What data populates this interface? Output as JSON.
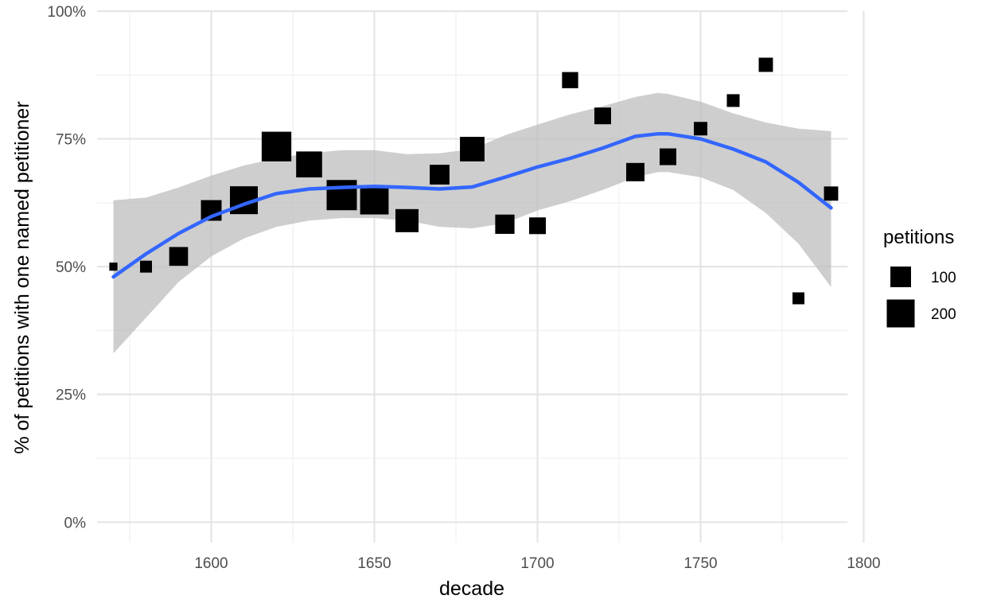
{
  "chart_data": {
    "type": "scatter",
    "xlabel": "decade",
    "ylabel": "% of petitions with one named petitioner",
    "xlim": [
      1565,
      1795
    ],
    "ylim": [
      -0.04,
      1.0
    ],
    "x_ticks": [
      1600,
      1650,
      1700,
      1750,
      1800
    ],
    "x_tick_labels": [
      "1600",
      "1650",
      "1700",
      "1750",
      "1800"
    ],
    "y_ticks": [
      0,
      0.25,
      0.5,
      0.75,
      1.0
    ],
    "y_tick_labels": [
      "0%",
      "25%",
      "50%",
      "75%",
      "100%"
    ],
    "grid": true,
    "legend": {
      "title": "petitions",
      "position": "right",
      "entries": [
        {
          "label": "100",
          "value": 100
        },
        {
          "label": "200",
          "value": 200
        }
      ]
    },
    "points": [
      {
        "x": 1570,
        "y": 0.5,
        "petitions": 8
      },
      {
        "x": 1580,
        "y": 0.5,
        "petitions": 25
      },
      {
        "x": 1590,
        "y": 0.52,
        "petitions": 80
      },
      {
        "x": 1600,
        "y": 0.61,
        "petitions": 100
      },
      {
        "x": 1610,
        "y": 0.63,
        "petitions": 200
      },
      {
        "x": 1620,
        "y": 0.735,
        "petitions": 230
      },
      {
        "x": 1630,
        "y": 0.7,
        "petitions": 170
      },
      {
        "x": 1640,
        "y": 0.64,
        "petitions": 240
      },
      {
        "x": 1650,
        "y": 0.63,
        "petitions": 210
      },
      {
        "x": 1660,
        "y": 0.59,
        "petitions": 130
      },
      {
        "x": 1670,
        "y": 0.68,
        "petitions": 90
      },
      {
        "x": 1680,
        "y": 0.73,
        "petitions": 150
      },
      {
        "x": 1690,
        "y": 0.583,
        "petitions": 85
      },
      {
        "x": 1700,
        "y": 0.58,
        "petitions": 60
      },
      {
        "x": 1710,
        "y": 0.865,
        "petitions": 55
      },
      {
        "x": 1720,
        "y": 0.795,
        "petitions": 60
      },
      {
        "x": 1730,
        "y": 0.685,
        "petitions": 75
      },
      {
        "x": 1740,
        "y": 0.715,
        "petitions": 60
      },
      {
        "x": 1750,
        "y": 0.77,
        "petitions": 35
      },
      {
        "x": 1760,
        "y": 0.825,
        "petitions": 30
      },
      {
        "x": 1770,
        "y": 0.895,
        "petitions": 40
      },
      {
        "x": 1780,
        "y": 0.438,
        "petitions": 25
      },
      {
        "x": 1790,
        "y": 0.643,
        "petitions": 40
      }
    ],
    "smooth": {
      "x": [
        1570,
        1580,
        1590,
        1600,
        1610,
        1620,
        1630,
        1640,
        1650,
        1660,
        1670,
        1680,
        1690,
        1700,
        1710,
        1720,
        1730,
        1737,
        1740,
        1750,
        1760,
        1770,
        1780,
        1790
      ],
      "y": [
        0.48,
        0.525,
        0.565,
        0.598,
        0.622,
        0.643,
        0.652,
        0.655,
        0.657,
        0.655,
        0.652,
        0.656,
        0.675,
        0.695,
        0.712,
        0.732,
        0.755,
        0.76,
        0.76,
        0.75,
        0.73,
        0.705,
        0.665,
        0.615
      ],
      "lower": [
        0.33,
        0.4,
        0.47,
        0.52,
        0.555,
        0.578,
        0.59,
        0.595,
        0.595,
        0.59,
        0.578,
        0.575,
        0.585,
        0.61,
        0.628,
        0.65,
        0.675,
        0.685,
        0.685,
        0.675,
        0.65,
        0.605,
        0.545,
        0.46
      ],
      "upper": [
        0.63,
        0.635,
        0.655,
        0.678,
        0.698,
        0.712,
        0.722,
        0.728,
        0.728,
        0.72,
        0.722,
        0.73,
        0.757,
        0.778,
        0.798,
        0.814,
        0.832,
        0.84,
        0.838,
        0.823,
        0.8,
        0.782,
        0.77,
        0.765
      ]
    },
    "colors": {
      "points": "#000000",
      "smooth_line": "#3366ff",
      "ribbon": "#bebebe",
      "grid_major": "#e5e5e5",
      "grid_minor": "#f0f0f0"
    }
  }
}
